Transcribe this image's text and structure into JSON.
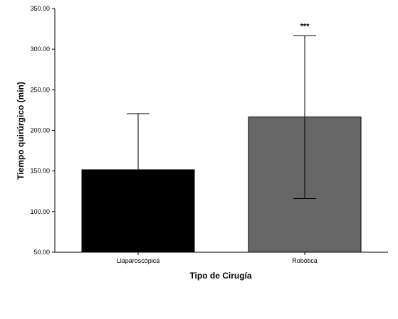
{
  "chart_data": {
    "type": "bar",
    "categories": [
      "Llaparoscópica",
      "Robótica"
    ],
    "values": [
      151.5,
      216.5
    ],
    "error_bars": [
      {
        "lower": 151.5,
        "upper": 220.5
      },
      {
        "lower": 116.0,
        "upper": 316.5
      }
    ],
    "bar_colors": [
      "#000000",
      "#666666"
    ],
    "annotations": [
      "",
      "***"
    ],
    "xlabel": "Tipo de Cirugía",
    "ylabel": "Tiempo quirúrgico (min)",
    "ylim": [
      50,
      350
    ],
    "yticks": [
      50,
      100,
      150,
      200,
      250,
      300,
      350
    ],
    "ytick_labels": [
      "50.00",
      "100.00",
      "150.00",
      "200.00",
      "250.00",
      "300.00",
      "350.00"
    ],
    "grid": false,
    "legend": "none"
  }
}
